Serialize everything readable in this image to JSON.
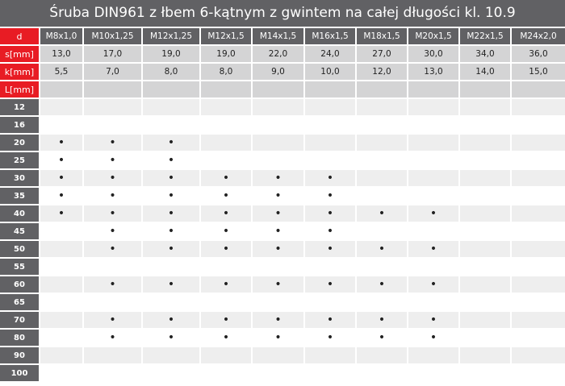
{
  "title": "Śruba DIN961 z łbem 6-kątnym z gwintem na całej długości kl. 10.9",
  "header_labels": {
    "d": "d",
    "s": "s[mm]",
    "k": "k[mm]",
    "L": "L[mm]"
  },
  "sizes": [
    "M8x1,0",
    "M10x1,25",
    "M12x1,25",
    "M12x1,5",
    "M14x1,5",
    "M16x1,5",
    "M18x1,5",
    "M20x1,5",
    "M22x1,5",
    "M24x2,0"
  ],
  "s": [
    "13,0",
    "17,0",
    "19,0",
    "19,0",
    "22,0",
    "24,0",
    "27,0",
    "30,0",
    "34,0",
    "36,0"
  ],
  "k": [
    "5,5",
    "7,0",
    "8,0",
    "8,0",
    "9,0",
    "10,0",
    "12,0",
    "13,0",
    "14,0",
    "15,0"
  ],
  "availability_mark": "•",
  "colors": {
    "accent": "#e81c24",
    "dark": "#616164"
  },
  "lengths": [
    {
      "L": "12",
      "avail": [
        0,
        0,
        0,
        0,
        0,
        0,
        0,
        0,
        0,
        0
      ]
    },
    {
      "L": "16",
      "avail": [
        0,
        0,
        0,
        0,
        0,
        0,
        0,
        0,
        0,
        0
      ]
    },
    {
      "L": "20",
      "avail": [
        1,
        1,
        1,
        0,
        0,
        0,
        0,
        0,
        0,
        0
      ]
    },
    {
      "L": "25",
      "avail": [
        1,
        1,
        1,
        0,
        0,
        0,
        0,
        0,
        0,
        0
      ]
    },
    {
      "L": "30",
      "avail": [
        1,
        1,
        1,
        1,
        1,
        1,
        0,
        0,
        0,
        0
      ]
    },
    {
      "L": "35",
      "avail": [
        1,
        1,
        1,
        1,
        1,
        1,
        0,
        0,
        0,
        0
      ]
    },
    {
      "L": "40",
      "avail": [
        1,
        1,
        1,
        1,
        1,
        1,
        1,
        1,
        0,
        0
      ]
    },
    {
      "L": "45",
      "avail": [
        0,
        1,
        1,
        1,
        1,
        1,
        0,
        0,
        0,
        0
      ]
    },
    {
      "L": "50",
      "avail": [
        0,
        1,
        1,
        1,
        1,
        1,
        1,
        1,
        0,
        0
      ]
    },
    {
      "L": "55",
      "avail": [
        0,
        0,
        0,
        0,
        0,
        0,
        0,
        0,
        0,
        0
      ]
    },
    {
      "L": "60",
      "avail": [
        0,
        1,
        1,
        1,
        1,
        1,
        1,
        1,
        0,
        0
      ]
    },
    {
      "L": "65",
      "avail": [
        0,
        0,
        0,
        0,
        0,
        0,
        0,
        0,
        0,
        0
      ]
    },
    {
      "L": "70",
      "avail": [
        0,
        1,
        1,
        1,
        1,
        1,
        1,
        1,
        0,
        0
      ]
    },
    {
      "L": "80",
      "avail": [
        0,
        1,
        1,
        1,
        1,
        1,
        1,
        1,
        0,
        0
      ]
    },
    {
      "L": "90",
      "avail": [
        0,
        0,
        0,
        0,
        0,
        0,
        0,
        0,
        0,
        0
      ]
    },
    {
      "L": "100",
      "avail": [
        0,
        0,
        0,
        0,
        0,
        0,
        0,
        0,
        0,
        0
      ]
    }
  ]
}
